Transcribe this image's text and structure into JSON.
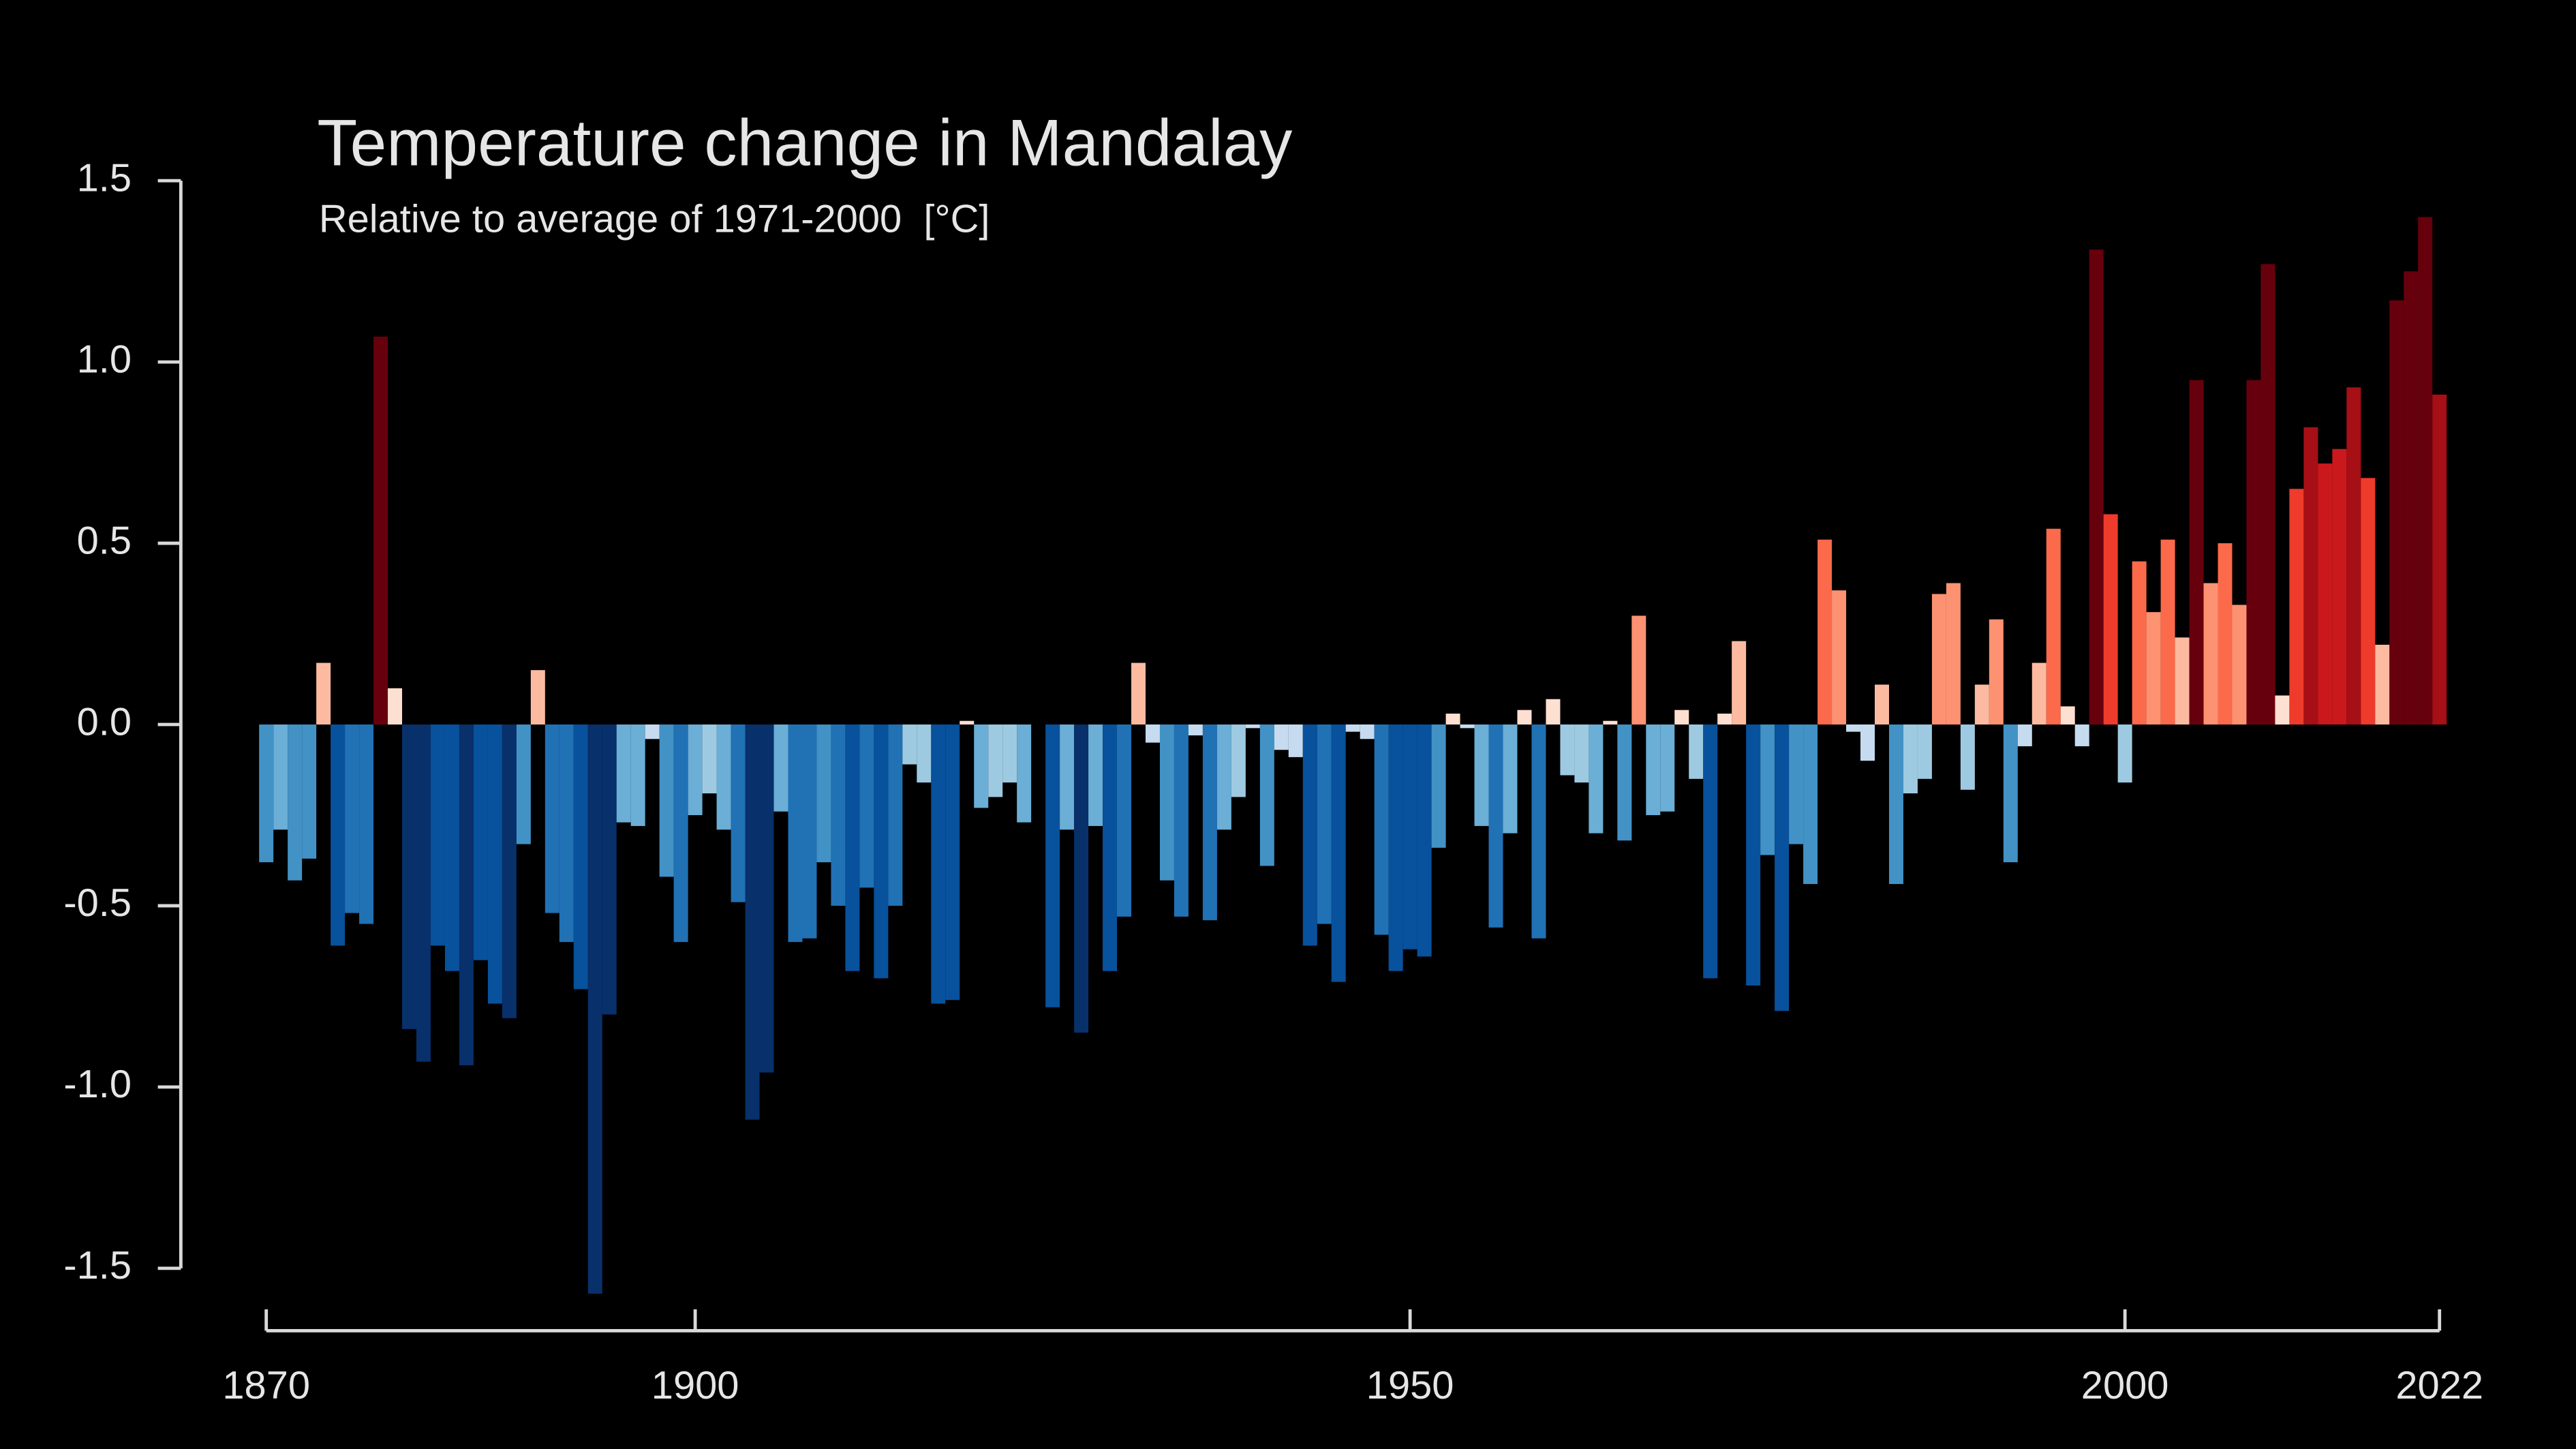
{
  "chart_data": {
    "type": "bar",
    "title": "Temperature change in Mandalay",
    "subtitle": "Relative to average of 1971-2000  [°C]",
    "x": [
      1870,
      1871,
      1872,
      1873,
      1874,
      1875,
      1876,
      1877,
      1878,
      1879,
      1880,
      1881,
      1882,
      1883,
      1884,
      1885,
      1886,
      1887,
      1888,
      1889,
      1890,
      1891,
      1892,
      1893,
      1894,
      1895,
      1896,
      1897,
      1898,
      1899,
      1900,
      1901,
      1902,
      1903,
      1904,
      1905,
      1906,
      1907,
      1908,
      1909,
      1910,
      1911,
      1912,
      1913,
      1914,
      1915,
      1916,
      1917,
      1918,
      1919,
      1920,
      1921,
      1922,
      1923,
      1924,
      1925,
      1926,
      1927,
      1928,
      1929,
      1930,
      1931,
      1932,
      1933,
      1934,
      1935,
      1936,
      1937,
      1938,
      1939,
      1940,
      1941,
      1942,
      1943,
      1944,
      1945,
      1946,
      1947,
      1948,
      1949,
      1950,
      1951,
      1952,
      1953,
      1954,
      1955,
      1956,
      1957,
      1958,
      1959,
      1960,
      1961,
      1962,
      1963,
      1964,
      1965,
      1966,
      1967,
      1968,
      1969,
      1970,
      1971,
      1972,
      1973,
      1974,
      1975,
      1976,
      1977,
      1978,
      1979,
      1980,
      1981,
      1982,
      1983,
      1984,
      1985,
      1986,
      1987,
      1988,
      1989,
      1990,
      1991,
      1992,
      1993,
      1994,
      1995,
      1996,
      1997,
      1998,
      1999,
      2000,
      2001,
      2002,
      2003,
      2004,
      2005,
      2006,
      2007,
      2008,
      2009,
      2010,
      2011,
      2012,
      2013,
      2014,
      2015,
      2016,
      2017,
      2018,
      2019,
      2020,
      2021,
      2022
    ],
    "values": [
      -0.38,
      -0.29,
      -0.43,
      -0.37,
      0.17,
      -0.61,
      -0.52,
      -0.55,
      1.07,
      0.1,
      -0.84,
      -0.93,
      -0.61,
      -0.68,
      -0.94,
      -0.65,
      -0.77,
      -0.81,
      -0.33,
      0.15,
      -0.52,
      -0.6,
      -0.73,
      -1.57,
      -0.8,
      -0.27,
      -0.28,
      -0.04,
      -0.42,
      -0.6,
      -0.25,
      -0.19,
      -0.29,
      -0.49,
      -1.09,
      -0.96,
      -0.24,
      -0.6,
      -0.59,
      -0.38,
      -0.5,
      -0.68,
      -0.45,
      -0.7,
      -0.5,
      -0.11,
      -0.16,
      -0.77,
      -0.76,
      0.01,
      -0.23,
      -0.2,
      -0.16,
      -0.27,
      0.0,
      -0.78,
      -0.29,
      -0.85,
      -0.28,
      -0.68,
      -0.53,
      0.17,
      -0.05,
      -0.43,
      -0.53,
      -0.03,
      -0.54,
      -0.29,
      -0.2,
      -0.01,
      -0.39,
      -0.07,
      -0.09,
      -0.61,
      -0.55,
      -0.71,
      -0.02,
      -0.04,
      -0.58,
      -0.68,
      -0.62,
      -0.64,
      -0.34,
      0.03,
      -0.01,
      -0.28,
      -0.56,
      -0.3,
      0.04,
      -0.59,
      0.07,
      -0.14,
      -0.16,
      -0.3,
      0.01,
      -0.32,
      0.3,
      -0.25,
      -0.24,
      0.04,
      -0.15,
      -0.7,
      0.03,
      0.23,
      -0.72,
      -0.36,
      -0.79,
      -0.33,
      -0.44,
      0.51,
      0.37,
      -0.02,
      -0.1,
      0.11,
      -0.44,
      -0.19,
      -0.15,
      0.36,
      0.39,
      -0.18,
      0.11,
      0.29,
      -0.38,
      -0.06,
      0.17,
      0.54,
      0.05,
      -0.06,
      1.31,
      0.58,
      -0.16,
      0.45,
      0.31,
      0.51,
      0.24,
      0.95,
      0.39,
      0.5,
      0.33,
      0.95,
      1.27,
      0.08,
      0.65,
      0.82,
      0.72,
      0.76,
      0.93,
      0.68,
      0.22,
      1.17,
      1.25,
      1.4,
      0.91
    ],
    "colors": [
      "#4292c6",
      "#6baed6",
      "#4292c6",
      "#4292c6",
      "#fcbba1",
      "#08519c",
      "#2171b5",
      "#2171b5",
      "#67000d",
      "#fee0d2",
      "#08306b",
      "#08306b",
      "#08519c",
      "#08519c",
      "#08306b",
      "#08519c",
      "#08519c",
      "#08306b",
      "#4292c6",
      "#fcbba1",
      "#2171b5",
      "#2171b5",
      "#08519c",
      "#08306b",
      "#08306b",
      "#6baed6",
      "#6baed6",
      "#c6dbef",
      "#4292c6",
      "#2171b5",
      "#6baed6",
      "#9ecae1",
      "#6baed6",
      "#2171b5",
      "#08306b",
      "#08306b",
      "#6baed6",
      "#2171b5",
      "#2171b5",
      "#4292c6",
      "#2171b5",
      "#08519c",
      "#2171b5",
      "#08519c",
      "#2171b5",
      "#9ecae1",
      "#9ecae1",
      "#08519c",
      "#08519c",
      "#fee0d2",
      "#6baed6",
      "#9ecae1",
      "#9ecae1",
      "#6baed6",
      "#fee0d2",
      "#08519c",
      "#6baed6",
      "#08306b",
      "#6baed6",
      "#08519c",
      "#2171b5",
      "#fcbba1",
      "#c6dbef",
      "#4292c6",
      "#2171b5",
      "#c6dbef",
      "#2171b5",
      "#6baed6",
      "#9ecae1",
      "#c6dbef",
      "#4292c6",
      "#c6dbef",
      "#c6dbef",
      "#08519c",
      "#2171b5",
      "#08519c",
      "#c6dbef",
      "#c6dbef",
      "#2171b5",
      "#08519c",
      "#08519c",
      "#08519c",
      "#4292c6",
      "#fee0d2",
      "#c6dbef",
      "#6baed6",
      "#2171b5",
      "#6baed6",
      "#fee0d2",
      "#2171b5",
      "#fee0d2",
      "#9ecae1",
      "#9ecae1",
      "#6baed6",
      "#fee0d2",
      "#4292c6",
      "#fc9272",
      "#6baed6",
      "#6baed6",
      "#fee0d2",
      "#9ecae1",
      "#08519c",
      "#fee0d2",
      "#fcbba1",
      "#08519c",
      "#4292c6",
      "#08519c",
      "#4292c6",
      "#4292c6",
      "#fb6a4a",
      "#fc9272",
      "#c6dbef",
      "#c6dbef",
      "#fcbba1",
      "#4292c6",
      "#9ecae1",
      "#9ecae1",
      "#fc9272",
      "#fc9272",
      "#9ecae1",
      "#fcbba1",
      "#fc9272",
      "#4292c6",
      "#c6dbef",
      "#fcbba1",
      "#fb6a4a",
      "#fee0d2",
      "#c6dbef",
      "#67000d",
      "#ef3b2c",
      "#9ecae1",
      "#fb6a4a",
      "#fc9272",
      "#fb6a4a",
      "#fcbba1",
      "#67000d",
      "#fc9272",
      "#fb6a4a",
      "#fc9272",
      "#67000d",
      "#67000d",
      "#fee0d2",
      "#ef3b2c",
      "#a50f15",
      "#cb181d",
      "#cb181d",
      "#a50f15",
      "#ef3b2c",
      "#fcbba1",
      "#67000d",
      "#67000d",
      "#67000d",
      "#a50f15"
    ],
    "xlim": [
      1870,
      2022
    ],
    "xticks": [
      1870,
      1900,
      1950,
      2000,
      2022
    ],
    "ylim": [
      -1.5,
      1.5
    ],
    "yticks": [
      1.5,
      {
        "value": 1,
        "label": "1.0"
      },
      0.5,
      {
        "value": 0,
        "label": "0.0"
      },
      -0.5,
      {
        "value": -1,
        "label": "-1.0"
      },
      -1.5
    ]
  }
}
